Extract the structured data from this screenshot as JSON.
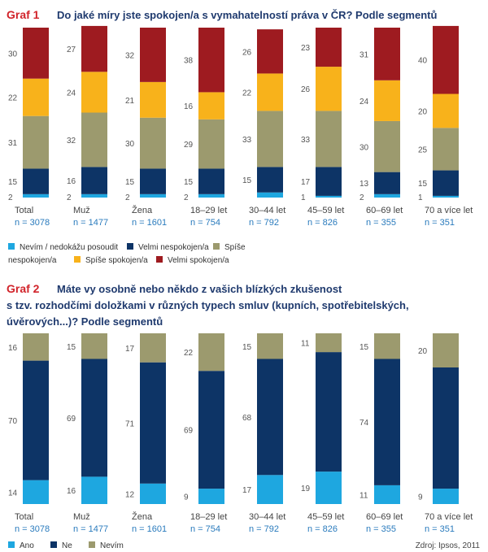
{
  "chart_data": [
    {
      "type": "bar",
      "stacked": true,
      "percent": true,
      "label": "Graf 1",
      "title": "Do jaké míry jste spokojen/a s vymahatelností práva v ČR? Podle segmentů",
      "categories": [
        "Total",
        "Muž",
        "Žena",
        "18–29 let",
        "30–44 let",
        "45–59 let",
        "60–69 let",
        "70 a více let"
      ],
      "n_labels": [
        "n = 3078",
        "n = 1477",
        "n = 1601",
        "n = 754",
        "n = 792",
        "n = 826",
        "n = 355",
        "n = 351"
      ],
      "series": [
        {
          "name": "Nevím / nedokážu posoudit",
          "color": "#1ea7e0",
          "values": [
            2,
            2,
            2,
            2,
            3,
            1,
            2,
            1
          ]
        },
        {
          "name": "Velmi nespokojen/a",
          "color": "#0d3466",
          "values": [
            15,
            16,
            15,
            15,
            15,
            17,
            13,
            15
          ]
        },
        {
          "name": "Spíše nespokojen/a",
          "color": "#9c9a6e",
          "values": [
            31,
            32,
            30,
            29,
            33,
            33,
            30,
            25
          ]
        },
        {
          "name": "Spíše spokojen/a",
          "color": "#f8b21b",
          "values": [
            22,
            24,
            21,
            16,
            22,
            26,
            24,
            20
          ]
        },
        {
          "name": "Velmi spokojen/a",
          "color": "#9e1b20",
          "values": [
            30,
            27,
            32,
            38,
            26,
            23,
            31,
            40
          ]
        }
      ],
      "value_labels": {
        "Nevím / nedokážu posoudit": [
          "2",
          "2",
          "2",
          "2",
          "",
          "1",
          "2",
          "1"
        ],
        "Velmi nespokojen/a": [
          "15",
          "16",
          "15",
          "15",
          "15",
          "17",
          "13",
          "15"
        ],
        "Spíše nespokojen/a": [
          "31",
          "32",
          "30",
          "29",
          "33",
          "33",
          "30",
          "25"
        ],
        "Spíše spokojen/a": [
          "22",
          "24",
          "21",
          "16",
          "22",
          "26",
          "24",
          "20"
        ],
        "Velmi spokojen/a": [
          "30",
          "27",
          "32",
          "38",
          "26",
          "23",
          "31",
          "40"
        ]
      },
      "legend_line1": [
        "Nevím / nedokážu posoudit",
        "Velmi nespokojen/a",
        "Spíše"
      ],
      "legend_line2": [
        "nespokojen/a",
        "Spíše spokojen/a",
        "Velmi spokojen/a"
      ],
      "ylim": [
        0,
        100
      ]
    },
    {
      "type": "bar",
      "stacked": true,
      "percent": true,
      "label": "Graf 2",
      "title_lines": [
        "Máte vy osobně nebo někdo z vašich blízkých zkušenost",
        "s tzv. rozhodčími doložkami v různých typech smluv (kupních, spotřebitelských,",
        "úvěrových...)? Podle segmentů"
      ],
      "categories": [
        "Total",
        "Muž",
        "Žena",
        "18–29 let",
        "30–44 let",
        "45–59 let",
        "60–69 let",
        "70 a více let"
      ],
      "n_labels": [
        "n = 3078",
        "n = 1477",
        "n = 1601",
        "n = 754",
        "n = 792",
        "n = 826",
        "n = 355",
        "n = 351"
      ],
      "series": [
        {
          "name": "Ano",
          "color": "#1ea7e0",
          "values": [
            14,
            16,
            12,
            9,
            17,
            19,
            11,
            9
          ]
        },
        {
          "name": "Ne",
          "color": "#0d3466",
          "values": [
            70,
            69,
            71,
            69,
            68,
            70,
            74,
            71
          ]
        },
        {
          "name": "Nevím",
          "color": "#9c9a6e",
          "values": [
            16,
            15,
            17,
            22,
            15,
            11,
            15,
            20
          ]
        }
      ],
      "value_labels": {
        "Ano": [
          "14",
          "16",
          "12",
          "9",
          "17",
          "19",
          "11",
          "9"
        ],
        "Ne": [
          "70",
          "69",
          "71",
          "69",
          "68",
          "",
          "74",
          ""
        ],
        "Nevím": [
          "16",
          "15",
          "17",
          "22",
          "15",
          "11",
          "15",
          "20"
        ]
      },
      "ylim": [
        0,
        100
      ]
    }
  ],
  "source": "Zdroj: Ipsos, 2011"
}
